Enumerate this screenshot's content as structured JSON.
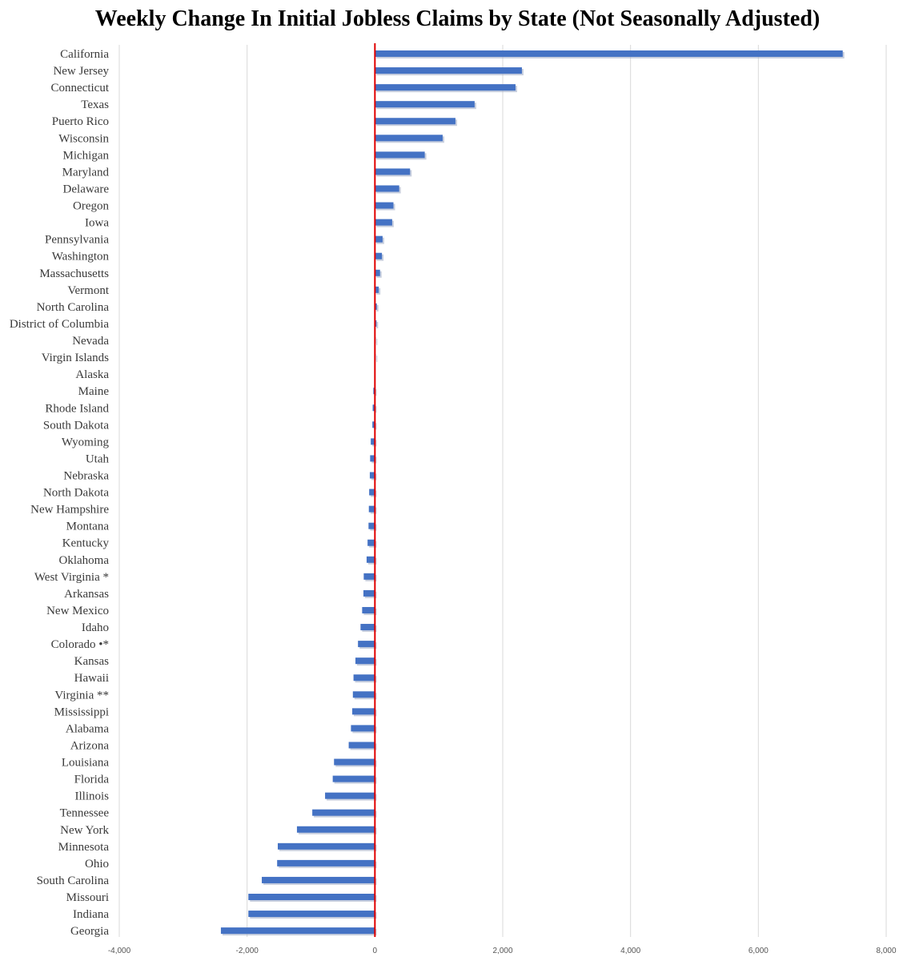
{
  "chart_data": {
    "type": "bar",
    "orientation": "horizontal",
    "title": "Weekly Change In Initial Jobless Claims by State (Not Seasonally Adjusted)",
    "xlabel": "",
    "ylabel": "",
    "xlim": [
      -4000,
      8000
    ],
    "xticks": [
      -4000,
      -2000,
      0,
      2000,
      4000,
      6000,
      8000
    ],
    "xtick_labels": [
      "-4,000",
      "-2,000",
      "0",
      "2,000",
      "4,000",
      "6,000",
      "8,000"
    ],
    "grid": true,
    "legend": "none",
    "colors": {
      "bar": "#4472c4",
      "zero_line": "#e00000",
      "grid": "#d9d9d9"
    },
    "categories": [
      "California",
      "New Jersey",
      "Connecticut",
      "Texas",
      "Puerto Rico",
      "Wisconsin",
      "Michigan",
      "Maryland",
      "Delaware",
      "Oregon",
      "Iowa",
      "Pennsylvania",
      "Washington",
      "Massachusetts",
      "Vermont",
      "North Carolina",
      "District of Columbia",
      "Nevada",
      "Virgin Islands",
      "Alaska",
      "Maine",
      "Rhode Island",
      "South Dakota",
      "Wyoming",
      "Utah",
      "Nebraska",
      "North Dakota",
      "New Hampshire",
      "Montana",
      "Kentucky",
      "Oklahoma",
      "West Virginia *",
      "Arkansas",
      "New Mexico",
      "Idaho",
      "Colorado •*",
      "Kansas",
      "Hawaii",
      "Virginia **",
      "Mississippi",
      "Alabama",
      "Arizona",
      "Louisiana",
      "Florida",
      "Illinois",
      "Tennessee",
      "New York",
      "Minnesota",
      "Ohio",
      "South Carolina",
      "Missouri",
      "Indiana",
      "Georgia"
    ],
    "values": [
      7320,
      2300,
      2200,
      1560,
      1260,
      1060,
      780,
      550,
      380,
      290,
      270,
      120,
      110,
      80,
      60,
      30,
      25,
      5,
      3,
      0,
      -25,
      -35,
      -40,
      -65,
      -75,
      -80,
      -90,
      -95,
      -100,
      -115,
      -130,
      -175,
      -180,
      -200,
      -225,
      -265,
      -305,
      -335,
      -345,
      -355,
      -375,
      -410,
      -640,
      -660,
      -780,
      -980,
      -1220,
      -1520,
      -1530,
      -1770,
      -1980,
      -1980,
      -2410
    ]
  }
}
